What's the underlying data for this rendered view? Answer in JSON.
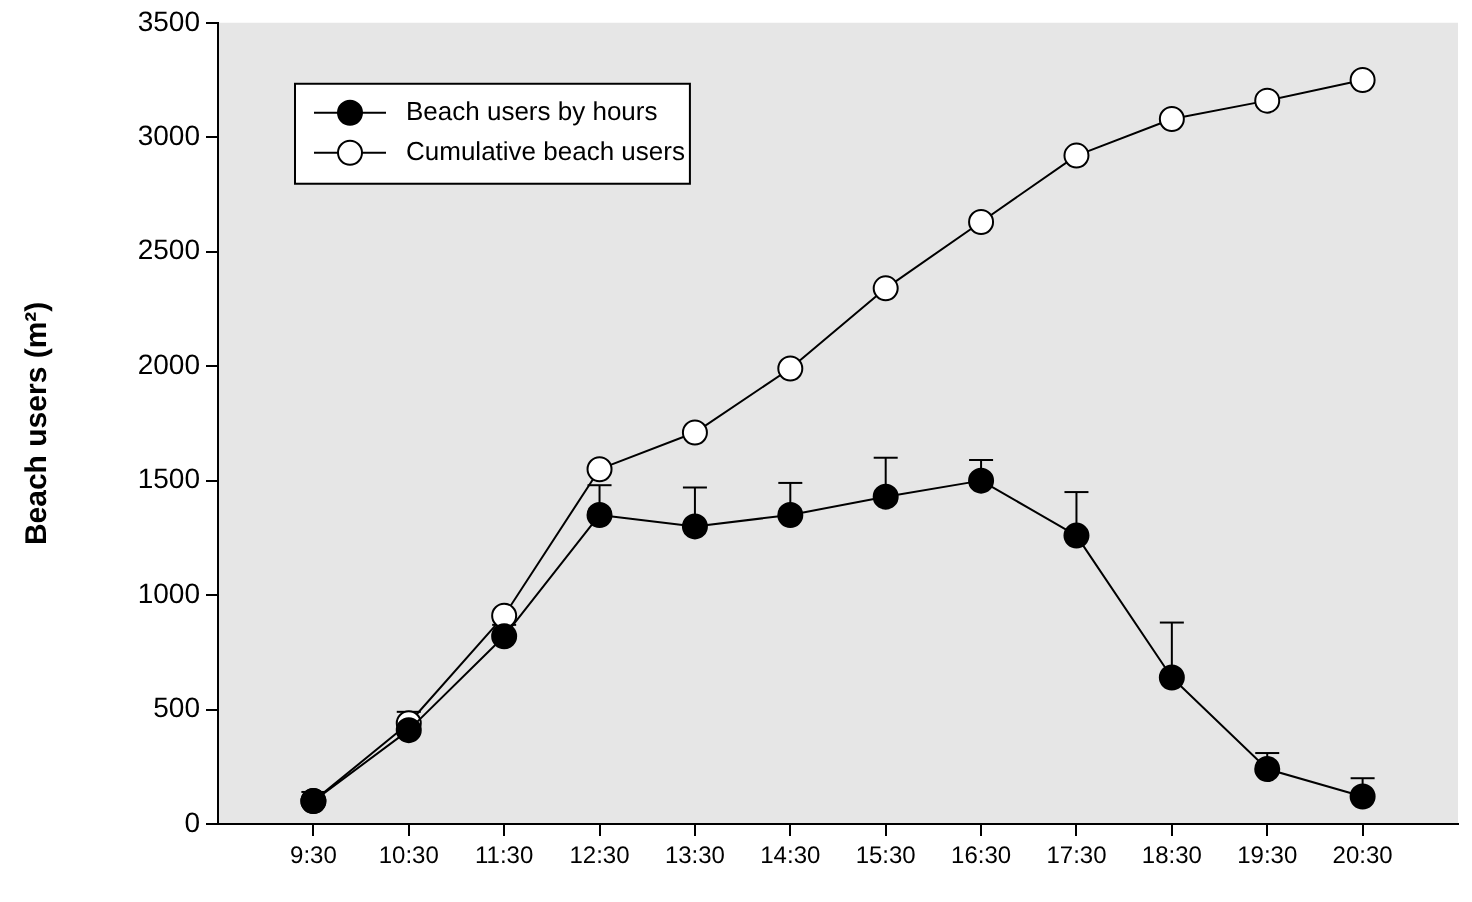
{
  "chart_data": {
    "type": "line",
    "ylabel": "Beach users (m²)",
    "categories": [
      "9:30",
      "10:30",
      "11:30",
      "12:30",
      "13:30",
      "14:30",
      "15:30",
      "16:30",
      "17:30",
      "18:30",
      "19:30",
      "20:30"
    ],
    "series": [
      {
        "name": "Beach users by hours",
        "color": "#000000",
        "values": [
          100,
          410,
          820,
          1350,
          1300,
          1350,
          1430,
          1500,
          1260,
          640,
          240,
          120
        ],
        "errors": [
          [
            100,
            140
          ],
          [
            410,
            490
          ],
          [
            820,
            870
          ],
          [
            1350,
            1480
          ],
          [
            1300,
            1470
          ],
          [
            1350,
            1490
          ],
          [
            1430,
            1600
          ],
          [
            1500,
            1590
          ],
          [
            1260,
            1450
          ],
          [
            640,
            880
          ],
          [
            240,
            310
          ],
          [
            120,
            200
          ]
        ]
      },
      {
        "name": "Cumulative beach users",
        "color": "#ffffff",
        "values": [
          100,
          440,
          910,
          1550,
          1710,
          1990,
          2340,
          2630,
          2920,
          3080,
          3160,
          3250
        ]
      }
    ],
    "ylim": [
      0,
      3500
    ],
    "yticks": [
      0,
      500,
      1000,
      1500,
      2000,
      2500,
      3000,
      3500
    ],
    "grid": false,
    "legend": "top left",
    "marker": "circle",
    "line_style": "solid"
  }
}
